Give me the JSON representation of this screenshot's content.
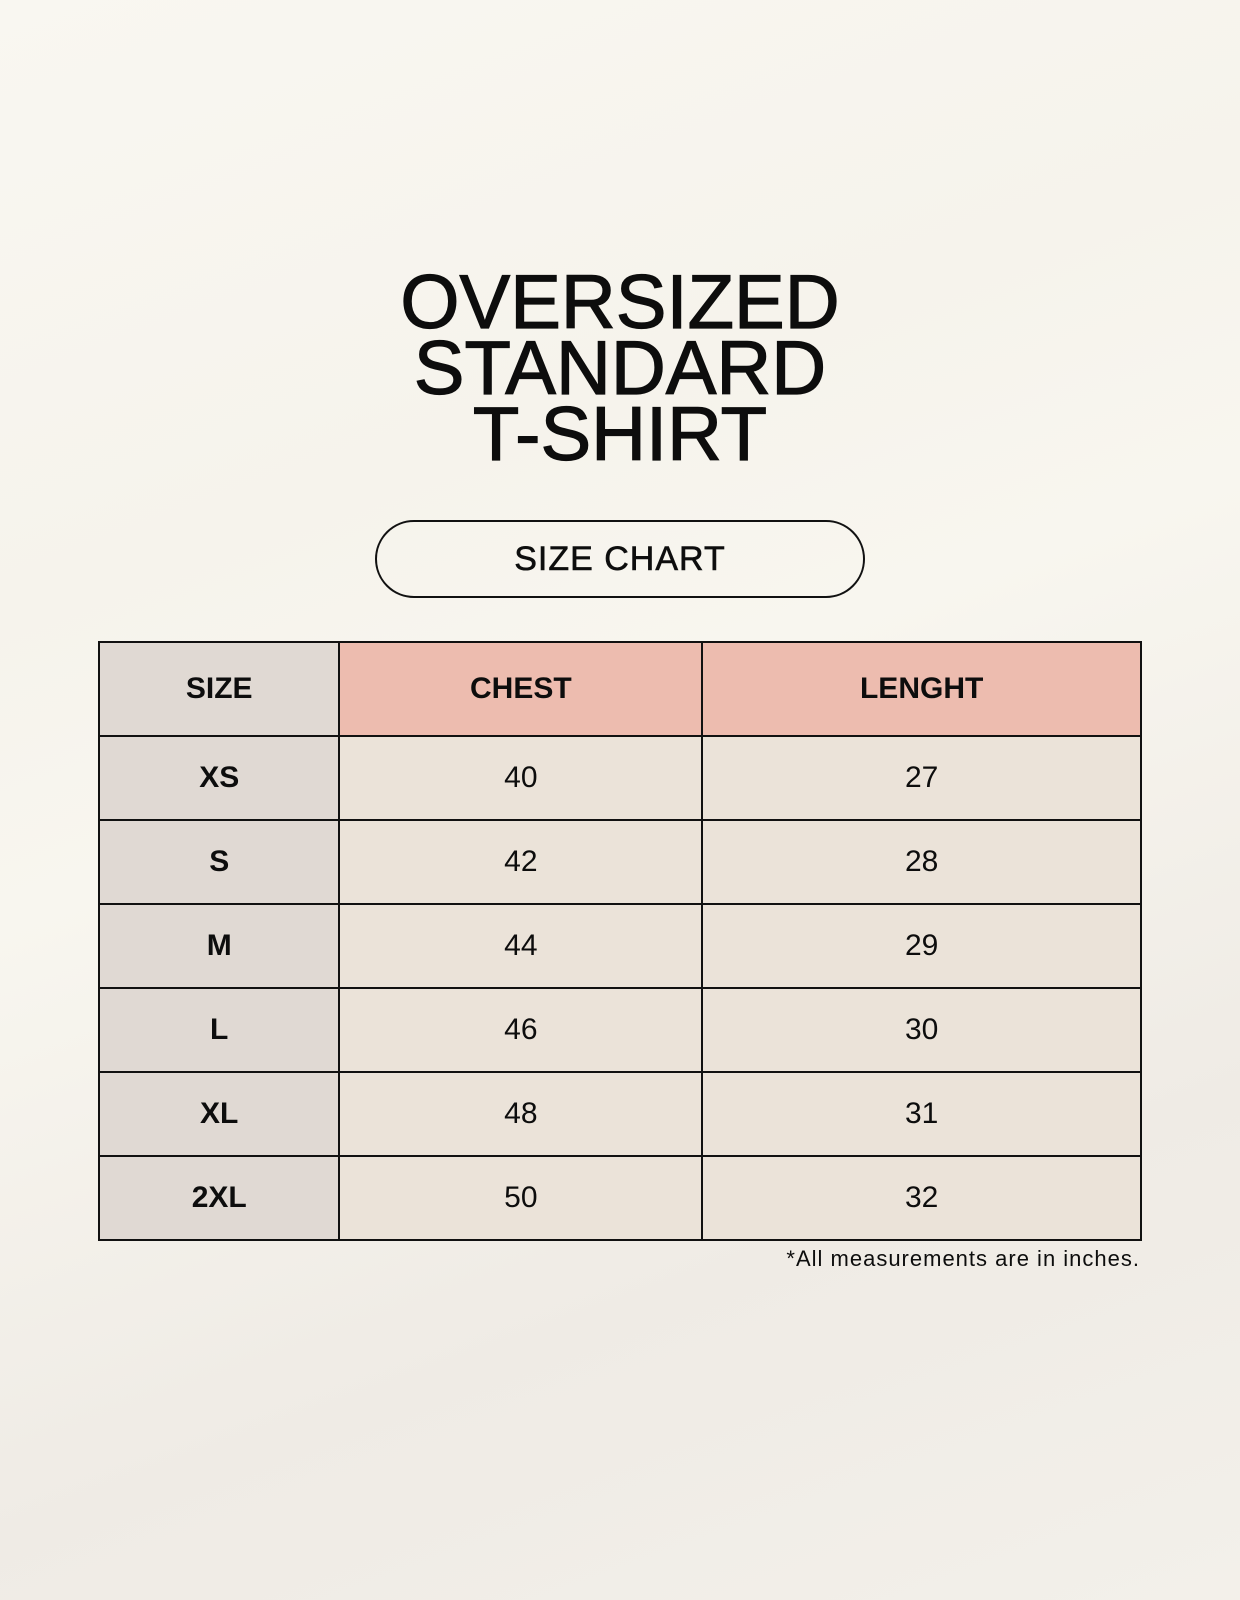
{
  "title": {
    "lines": [
      "OVERSIZED",
      "STANDARD",
      "T-SHIRT"
    ]
  },
  "badge": "SIZE CHART",
  "table": {
    "headers": [
      "SIZE",
      "CHEST",
      "LENGHT"
    ],
    "rows": [
      [
        "XS",
        "40",
        "27"
      ],
      [
        "S",
        "42",
        "28"
      ],
      [
        "M",
        "44",
        "29"
      ],
      [
        "L",
        "46",
        "30"
      ],
      [
        "XL",
        "48",
        "31"
      ],
      [
        "2XL",
        "50",
        "32"
      ]
    ]
  },
  "footnote": "*All measurements are in inches.",
  "colors": {
    "size_column": "#e0d9d3",
    "header_accent": "#edbcaf",
    "cell": "#ebe3d9",
    "background": "#f8f5ef"
  }
}
